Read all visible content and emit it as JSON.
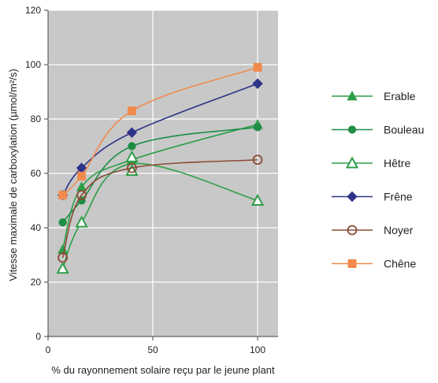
{
  "chart_data": {
    "type": "line",
    "title": "",
    "xlabel": "% du rayonnement solaire reçu par le jeune plant",
    "ylabel": "Vitesse maximale de carboxylation (µmol/m²/s)",
    "xlim": [
      0,
      110
    ],
    "ylim": [
      0,
      120
    ],
    "xticks": [
      "0",
      "50",
      "100"
    ],
    "yticks": [
      "0",
      "20",
      "40",
      "60",
      "80",
      "100",
      "120"
    ],
    "grid": true,
    "background": "#c8c8c8",
    "legend_position": "right",
    "series": [
      {
        "name": "Erable",
        "color": "#2e9e48",
        "marker": "filled-triangle",
        "points": [
          [
            7,
            32
          ],
          [
            16,
            55
          ],
          [
            40,
            65
          ],
          [
            100,
            78
          ]
        ]
      },
      {
        "name": "Bouleau",
        "color": "#1e8e44",
        "marker": "filled-circle",
        "points": [
          [
            7,
            42
          ],
          [
            16,
            50
          ],
          [
            40,
            70
          ],
          [
            100,
            77
          ]
        ]
      },
      {
        "name": "Hêtre",
        "color": "#2e9e48",
        "marker": "open-triangle",
        "points": [
          [
            7,
            25
          ],
          [
            16,
            42
          ],
          [
            40,
            61
          ],
          [
            40,
            66
          ],
          [
            100,
            50
          ]
        ]
      },
      {
        "name": "Frêne",
        "color": "#2e3388",
        "marker": "filled-diamond",
        "points": [
          [
            7,
            52
          ],
          [
            16,
            62
          ],
          [
            40,
            75
          ],
          [
            100,
            93
          ]
        ]
      },
      {
        "name": "Noyer",
        "color": "#8b4a35",
        "marker": "open-circle",
        "points": [
          [
            7,
            29
          ],
          [
            16,
            52
          ],
          [
            40,
            62
          ],
          [
            100,
            65
          ]
        ]
      },
      {
        "name": "Chêne",
        "color": "#f08a4b",
        "marker": "filled-square",
        "points": [
          [
            7,
            52
          ],
          [
            16,
            59
          ],
          [
            40,
            83
          ],
          [
            100,
            99
          ]
        ]
      }
    ]
  }
}
